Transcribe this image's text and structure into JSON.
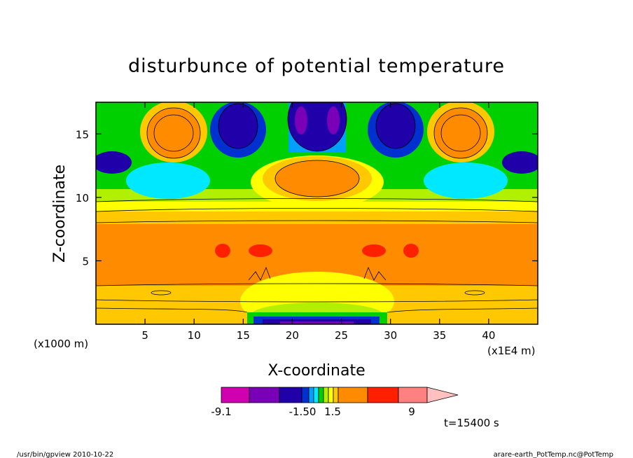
{
  "chart_data": {
    "type": "heatmap",
    "title": "disturbunce of potential temperature",
    "xlabel": "X-coordinate",
    "ylabel": "Z-coordinate",
    "x_unit": "(x1E4 m)",
    "y_unit": "(x1000 m)",
    "xlim": [
      0,
      45
    ],
    "ylim": [
      0,
      17.5
    ],
    "x_ticks": [
      5,
      10,
      15,
      20,
      25,
      30,
      35,
      40
    ],
    "y_ticks": [
      5,
      10,
      15
    ],
    "x_tick_labels": [
      "5",
      "10",
      "15",
      "20",
      "25",
      "30",
      "35",
      "40"
    ],
    "y_tick_labels": [
      "5",
      "10",
      "15"
    ],
    "colorbar": {
      "colors": [
        "#d000b0",
        "#7a00b8",
        "#2000a8",
        "#0030d0",
        "#00a0ff",
        "#00e8ff",
        "#00d000",
        "#b0f000",
        "#ffff00",
        "#ffc800",
        "#ff8c00",
        "#ff2000",
        "#ff8080",
        "#ffc0c0"
      ],
      "labels": [
        "-9.1",
        "-1.50",
        "1.5",
        "9"
      ]
    },
    "time_label": "t=15400 s"
  },
  "footer": {
    "left": "/usr/bin/gpview  2010-10-22",
    "right": "arare-earth_PotTemp.nc@PotTemp"
  }
}
